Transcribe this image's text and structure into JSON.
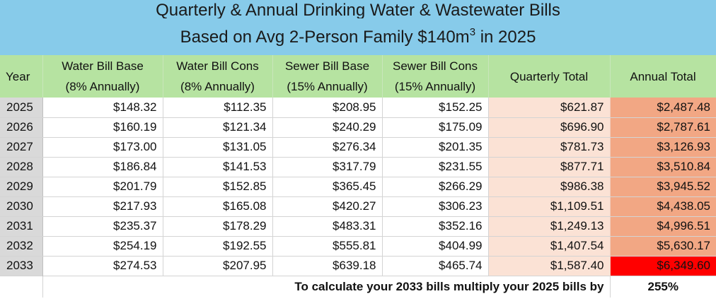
{
  "title": {
    "line1": "Quarterly & Annual Drinking Water & Wastewater Bills",
    "line2_prefix": "Based on Avg 2-Person Family $140m",
    "line2_sup": "3",
    "line2_suffix": " in 2025"
  },
  "headers": {
    "year": "Year",
    "water_base": [
      "Water Bill Base",
      "(8% Annually)"
    ],
    "water_cons": [
      "Water Bill Cons",
      "(8% Annually)"
    ],
    "sewer_base": [
      "Sewer Bill Base",
      "(15% Annually)"
    ],
    "sewer_cons": [
      "Sewer Bill Cons",
      "(15% Annually)"
    ],
    "quarterly_total": "Quarterly Total",
    "annual_total": "Annual Total"
  },
  "rows": [
    {
      "year": "2025",
      "water_base": "$148.32",
      "water_cons": "$112.35",
      "sewer_base": "$208.95",
      "sewer_cons": "$152.25",
      "quarterly_total": "$621.87",
      "annual_total": "$2,487.48"
    },
    {
      "year": "2026",
      "water_base": "$160.19",
      "water_cons": "$121.34",
      "sewer_base": "$240.29",
      "sewer_cons": "$175.09",
      "quarterly_total": "$696.90",
      "annual_total": "$2,787.61"
    },
    {
      "year": "2027",
      "water_base": "$173.00",
      "water_cons": "$131.05",
      "sewer_base": "$276.34",
      "sewer_cons": "$201.35",
      "quarterly_total": "$781.73",
      "annual_total": "$3,126.93"
    },
    {
      "year": "2028",
      "water_base": "$186.84",
      "water_cons": "$141.53",
      "sewer_base": "$317.79",
      "sewer_cons": "$231.55",
      "quarterly_total": "$877.71",
      "annual_total": "$3,510.84"
    },
    {
      "year": "2029",
      "water_base": "$201.79",
      "water_cons": "$152.85",
      "sewer_base": "$365.45",
      "sewer_cons": "$266.29",
      "quarterly_total": "$986.38",
      "annual_total": "$3,945.52"
    },
    {
      "year": "2030",
      "water_base": "$217.93",
      "water_cons": "$165.08",
      "sewer_base": "$420.27",
      "sewer_cons": "$306.23",
      "quarterly_total": "$1,109.51",
      "annual_total": "$4,438.05"
    },
    {
      "year": "2031",
      "water_base": "$235.37",
      "water_cons": "$178.29",
      "sewer_base": "$483.31",
      "sewer_cons": "$352.16",
      "quarterly_total": "$1,249.13",
      "annual_total": "$4,996.51"
    },
    {
      "year": "2032",
      "water_base": "$254.19",
      "water_cons": "$192.55",
      "sewer_base": "$555.81",
      "sewer_cons": "$404.99",
      "quarterly_total": "$1,407.54",
      "annual_total": "$5,630.17"
    },
    {
      "year": "2033",
      "water_base": "$274.53",
      "water_cons": "$207.95",
      "sewer_base": "$639.18",
      "sewer_cons": "$465.74",
      "quarterly_total": "$1,587.40",
      "annual_total": "$6,349.60",
      "highlight": true
    }
  ],
  "footer": {
    "note": "To calculate your 2033 bills multiply your 2025 bills by",
    "value": "255%"
  },
  "colors": {
    "title_bg": "#87cbea",
    "header_bg": "#b6e3a1",
    "year_bg": "#d9d9d9",
    "quarterly_bg": "#fbe2d5",
    "annual_bg": "#f2a784",
    "annual_highlight": "#ff0000"
  }
}
